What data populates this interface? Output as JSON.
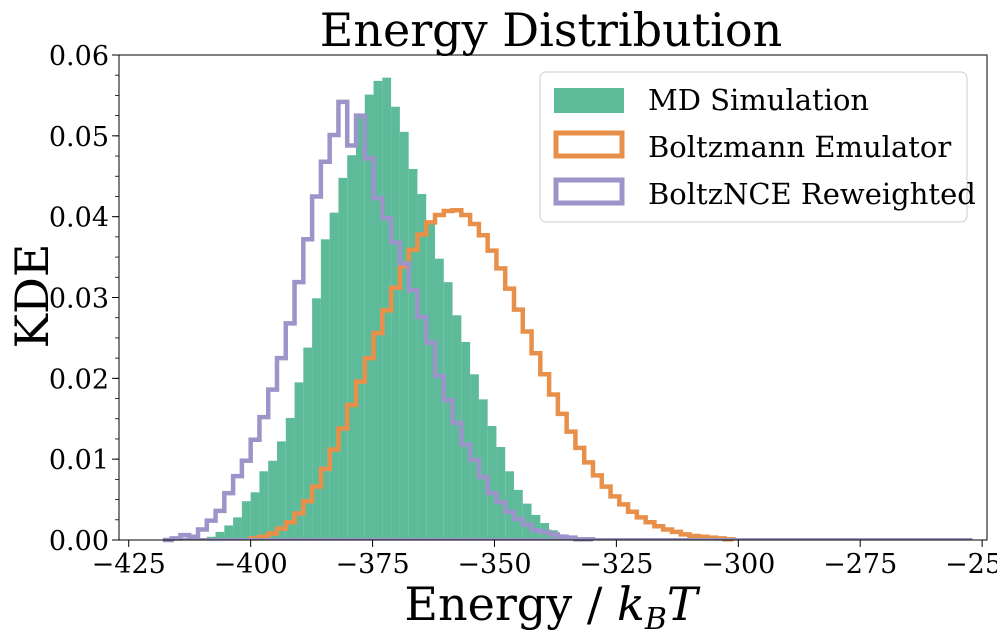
{
  "chart_data": {
    "type": "histogram",
    "title": "Energy Distribution",
    "xlabel": "Energy / k_B T",
    "xlabel_parts": {
      "main": "Energy / ",
      "k": "k",
      "sub": "B",
      "T": "T"
    },
    "ylabel": "KDE",
    "xlim": [
      -427,
      -249
    ],
    "ylim": [
      0,
      0.06
    ],
    "xticks": [
      -425,
      -400,
      -375,
      -350,
      -325,
      -300,
      -275,
      -250
    ],
    "xtick_labels": [
      "−425",
      "−400",
      "−375",
      "−350",
      "−325",
      "−300",
      "−275",
      "−250"
    ],
    "yticks": [
      0,
      0.01,
      0.02,
      0.03,
      0.04,
      0.05,
      0.06
    ],
    "ytick_labels": [
      "0.00",
      "0.01",
      "0.02",
      "0.03",
      "0.04",
      "0.05",
      "0.06"
    ],
    "grid": false,
    "legend_position": "top-right",
    "bins": {
      "start": -418,
      "width": 1.8,
      "count": 92
    },
    "series": [
      {
        "name": "MD Simulation",
        "style": "filled",
        "color": "#5dbb9a",
        "densities": [
          0,
          0,
          0,
          0,
          0,
          0,
          0,
          0,
          0,
          0,
          0,
          0,
          0,
          0,
          0,
          0,
          0,
          0,
          0,
          0,
          0,
          0,
          0,
          0,
          0,
          0,
          0,
          0,
          0,
          0,
          0,
          0,
          0,
          0,
          0,
          0,
          0,
          0,
          0,
          0,
          0,
          0,
          0,
          0,
          0,
          0,
          0,
          0,
          0,
          0,
          0,
          0,
          0,
          0,
          0,
          0,
          0,
          0,
          0,
          0,
          0,
          0,
          0,
          0,
          0,
          0,
          0,
          0,
          0,
          0,
          0,
          0,
          0,
          0,
          0,
          0,
          0,
          0,
          0,
          0,
          0,
          0,
          0,
          0,
          0,
          0,
          0,
          0,
          0,
          0,
          0,
          0
        ]
      },
      {
        "name": "Boltzmann Emulator",
        "style": "step",
        "color": "#e8904a",
        "densities": [
          0,
          0,
          0,
          0,
          0,
          0,
          0,
          0,
          0,
          0,
          0,
          0,
          0,
          0,
          0,
          0,
          0,
          0,
          0,
          0,
          0,
          0,
          0,
          0,
          0,
          0,
          0,
          0,
          0,
          0,
          0,
          0,
          0,
          0,
          0,
          0,
          0,
          0,
          0,
          0,
          0,
          0,
          0,
          0,
          0,
          0,
          0,
          0,
          0,
          0,
          0,
          0,
          0,
          0,
          0,
          0,
          0,
          0,
          0,
          0,
          0,
          0,
          0,
          0,
          0,
          0,
          0,
          0,
          0,
          0,
          0,
          0,
          0,
          0,
          0,
          0,
          0,
          0,
          0,
          0,
          0,
          0,
          0,
          0,
          0,
          0,
          0,
          0,
          0,
          0,
          0,
          0
        ]
      },
      {
        "name": "BoltzNCE Reweighted",
        "style": "step",
        "color": "#9b95c9",
        "densities": [
          0,
          0,
          0,
          0,
          0,
          0,
          0,
          0,
          0,
          0,
          0,
          0,
          0,
          0,
          0,
          0,
          0,
          0,
          0,
          0,
          0,
          0,
          0,
          0,
          0,
          0,
          0,
          0,
          0,
          0,
          0,
          0,
          0,
          0,
          0,
          0,
          0,
          0,
          0,
          0,
          0,
          0,
          0,
          0,
          0,
          0,
          0,
          0,
          0,
          0,
          0,
          0,
          0,
          0,
          0,
          0,
          0,
          0,
          0,
          0,
          0,
          0,
          0,
          0,
          0,
          0,
          0,
          0,
          0,
          0,
          0,
          0,
          0,
          0,
          0,
          0,
          0,
          0,
          0,
          0,
          0,
          0,
          0,
          0,
          0,
          0,
          0,
          0,
          0,
          0,
          0,
          0
        ]
      }
    ],
    "series_values": {
      "MD Simulation": [
        [
          -410.8,
          0.0001
        ],
        [
          -409,
          0.0004
        ],
        [
          -407.2,
          0.001
        ],
        [
          -405.4,
          0.0018
        ],
        [
          -403.6,
          0.0028
        ],
        [
          -401.8,
          0.0048
        ],
        [
          -400,
          0.0059
        ],
        [
          -398.2,
          0.0085
        ],
        [
          -396.4,
          0.0098
        ],
        [
          -394.6,
          0.0122
        ],
        [
          -392.8,
          0.0151
        ],
        [
          -391,
          0.0195
        ],
        [
          -389.2,
          0.0238
        ],
        [
          -387.4,
          0.0299
        ],
        [
          -385.6,
          0.0372
        ],
        [
          -383.8,
          0.0405
        ],
        [
          -382,
          0.0448
        ],
        [
          -380.2,
          0.0476
        ],
        [
          -378.4,
          0.0524
        ],
        [
          -376.6,
          0.0551
        ],
        [
          -374.8,
          0.0568
        ],
        [
          -373,
          0.0572
        ],
        [
          -371.2,
          0.0536
        ],
        [
          -369.4,
          0.0505
        ],
        [
          -367.6,
          0.0459
        ],
        [
          -365.8,
          0.0428
        ],
        [
          -364,
          0.0395
        ],
        [
          -362.2,
          0.0348
        ],
        [
          -360.4,
          0.0319
        ],
        [
          -358.6,
          0.0278
        ],
        [
          -356.8,
          0.0245
        ],
        [
          -355,
          0.0205
        ],
        [
          -353.2,
          0.0174
        ],
        [
          -351.4,
          0.0141
        ],
        [
          -349.6,
          0.0115
        ],
        [
          -347.8,
          0.0085
        ],
        [
          -346,
          0.0062
        ],
        [
          -344.2,
          0.0045
        ],
        [
          -342.4,
          0.0031
        ],
        [
          -340.6,
          0.0021
        ],
        [
          -338.8,
          0.0012
        ],
        [
          -337,
          0.0007
        ],
        [
          -335.2,
          0.0003
        ],
        [
          -333.4,
          0.0001
        ]
      ],
      "Boltzmann Emulator": [
        [
          -400,
          0.0002
        ],
        [
          -398.2,
          0.0004
        ],
        [
          -396.4,
          0.0008
        ],
        [
          -394.6,
          0.0014
        ],
        [
          -392.8,
          0.0022
        ],
        [
          -391,
          0.0033
        ],
        [
          -389.2,
          0.0048
        ],
        [
          -387.4,
          0.0066
        ],
        [
          -385.6,
          0.0088
        ],
        [
          -383.8,
          0.0112
        ],
        [
          -382,
          0.0138
        ],
        [
          -380.2,
          0.0167
        ],
        [
          -378.4,
          0.0196
        ],
        [
          -376.6,
          0.0225
        ],
        [
          -374.8,
          0.0256
        ],
        [
          -373,
          0.0284
        ],
        [
          -371.2,
          0.0312
        ],
        [
          -369.4,
          0.0338
        ],
        [
          -367.6,
          0.0359
        ],
        [
          -365.8,
          0.0378
        ],
        [
          -364,
          0.0393
        ],
        [
          -362.2,
          0.0402
        ],
        [
          -360.4,
          0.0407
        ],
        [
          -358.6,
          0.0408
        ],
        [
          -356.8,
          0.0402
        ],
        [
          -355,
          0.0391
        ],
        [
          -353.2,
          0.0377
        ],
        [
          -351.4,
          0.0358
        ],
        [
          -349.6,
          0.0336
        ],
        [
          -347.8,
          0.0311
        ],
        [
          -346,
          0.0285
        ],
        [
          -344.2,
          0.0258
        ],
        [
          -342.4,
          0.0231
        ],
        [
          -340.6,
          0.0205
        ],
        [
          -338.8,
          0.018
        ],
        [
          -337,
          0.0156
        ],
        [
          -335.2,
          0.0134
        ],
        [
          -333.4,
          0.0114
        ],
        [
          -331.6,
          0.0096
        ],
        [
          -329.8,
          0.008
        ],
        [
          -328,
          0.0066
        ],
        [
          -326.2,
          0.0054
        ],
        [
          -324.4,
          0.0044
        ],
        [
          -322.6,
          0.0035
        ],
        [
          -320.8,
          0.0028
        ],
        [
          -319,
          0.0022
        ],
        [
          -317.2,
          0.0017
        ],
        [
          -315.4,
          0.0013
        ],
        [
          -313.6,
          0.001
        ],
        [
          -311.8,
          0.0007
        ],
        [
          -310,
          0.0005
        ],
        [
          -308.2,
          0.0004
        ],
        [
          -306.4,
          0.0003
        ],
        [
          -304.6,
          0.0002
        ],
        [
          -302.8,
          0.0001
        ]
      ],
      "BoltzNCE Reweighted": [
        [
          -418,
          0
        ],
        [
          -416.2,
          0.0002
        ],
        [
          -414.4,
          0.0006
        ],
        [
          -412.6,
          0.0004
        ],
        [
          -410.8,
          0.0013
        ],
        [
          -409,
          0.0024
        ],
        [
          -407.2,
          0.0036
        ],
        [
          -405.4,
          0.0058
        ],
        [
          -403.6,
          0.0079
        ],
        [
          -401.8,
          0.0098
        ],
        [
          -400,
          0.0124
        ],
        [
          -398.2,
          0.0152
        ],
        [
          -396.4,
          0.0186
        ],
        [
          -394.6,
          0.0225
        ],
        [
          -392.8,
          0.0268
        ],
        [
          -391,
          0.0319
        ],
        [
          -389.2,
          0.0372
        ],
        [
          -387.4,
          0.0425
        ],
        [
          -385.6,
          0.0468
        ],
        [
          -383.8,
          0.0501
        ],
        [
          -382,
          0.0542
        ],
        [
          -380.2,
          0.0488
        ],
        [
          -378.4,
          0.0525
        ],
        [
          -376.6,
          0.0472
        ],
        [
          -374.8,
          0.0423
        ],
        [
          -373,
          0.0398
        ],
        [
          -371.2,
          0.0368
        ],
        [
          -369.4,
          0.0342
        ],
        [
          -367.6,
          0.0309
        ],
        [
          -365.8,
          0.0276
        ],
        [
          -364,
          0.0244
        ],
        [
          -362.2,
          0.0203
        ],
        [
          -360.4,
          0.0173
        ],
        [
          -358.6,
          0.0145
        ],
        [
          -356.8,
          0.0118
        ],
        [
          -355,
          0.0099
        ],
        [
          -353.2,
          0.0078
        ],
        [
          -351.4,
          0.0058
        ],
        [
          -349.6,
          0.0047
        ],
        [
          -347.8,
          0.0035
        ],
        [
          -346,
          0.0026
        ],
        [
          -344.2,
          0.0019
        ],
        [
          -342.4,
          0.0012
        ],
        [
          -340.6,
          0.001
        ],
        [
          -338.8,
          0.0007
        ],
        [
          -337,
          0.0004
        ],
        [
          -335.2,
          0.0003
        ],
        [
          -333.4,
          0.0001
        ],
        [
          -331.6,
          0.0001
        ]
      ]
    },
    "axis_span_x": [
      -418,
      -252
    ]
  }
}
